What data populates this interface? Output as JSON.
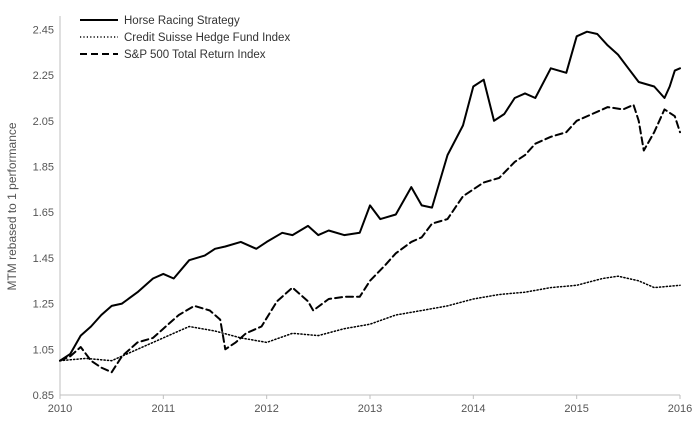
{
  "chart_data": {
    "type": "line",
    "title": "",
    "xlabel": "",
    "ylabel": "MTM rebased to 1 performance",
    "xlim": [
      2010,
      2016
    ],
    "ylim": [
      0.85,
      2.5
    ],
    "x_ticks": [
      "2010",
      "2011",
      "2012",
      "2013",
      "2014",
      "2015",
      "2016"
    ],
    "y_ticks": [
      "0.85",
      "1.05",
      "1.25",
      "1.45",
      "1.65",
      "1.85",
      "2.05",
      "2.25",
      "2.45"
    ],
    "grid": false,
    "legend": "top-left",
    "series": [
      {
        "name": "Horse Racing Strategy",
        "style": "solid",
        "color": "#000000",
        "x": [
          2010.0,
          2010.1,
          2010.2,
          2010.3,
          2010.4,
          2010.5,
          2010.6,
          2010.75,
          2010.9,
          2011.0,
          2011.1,
          2011.25,
          2011.4,
          2011.5,
          2011.6,
          2011.75,
          2011.9,
          2012.0,
          2012.15,
          2012.25,
          2012.4,
          2012.5,
          2012.6,
          2012.75,
          2012.9,
          2013.0,
          2013.1,
          2013.25,
          2013.4,
          2013.5,
          2013.6,
          2013.75,
          2013.9,
          2014.0,
          2014.1,
          2014.2,
          2014.3,
          2014.4,
          2014.5,
          2014.6,
          2014.75,
          2014.9,
          2015.0,
          2015.1,
          2015.2,
          2015.3,
          2015.4,
          2015.5,
          2015.6,
          2015.75,
          2015.85,
          2015.9,
          2015.95,
          2016.0
        ],
        "values": [
          1.0,
          1.03,
          1.11,
          1.15,
          1.2,
          1.24,
          1.25,
          1.3,
          1.36,
          1.38,
          1.36,
          1.44,
          1.46,
          1.49,
          1.5,
          1.52,
          1.49,
          1.52,
          1.56,
          1.55,
          1.59,
          1.55,
          1.57,
          1.55,
          1.56,
          1.68,
          1.62,
          1.64,
          1.76,
          1.68,
          1.67,
          1.9,
          2.03,
          2.2,
          2.23,
          2.05,
          2.08,
          2.15,
          2.17,
          2.15,
          2.28,
          2.26,
          2.42,
          2.44,
          2.43,
          2.38,
          2.34,
          2.28,
          2.22,
          2.2,
          2.15,
          2.2,
          2.27,
          2.28
        ]
      },
      {
        "name": "Credit Suisse Hedge Fund Index",
        "style": "dotted",
        "color": "#000000",
        "x": [
          2010.0,
          2010.25,
          2010.5,
          2010.75,
          2011.0,
          2011.25,
          2011.5,
          2011.75,
          2012.0,
          2012.25,
          2012.5,
          2012.75,
          2013.0,
          2013.25,
          2013.5,
          2013.75,
          2014.0,
          2014.25,
          2014.5,
          2014.75,
          2015.0,
          2015.25,
          2015.4,
          2015.5,
          2015.6,
          2015.75,
          2016.0
        ],
        "values": [
          1.0,
          1.01,
          1.0,
          1.05,
          1.1,
          1.15,
          1.13,
          1.1,
          1.08,
          1.12,
          1.11,
          1.14,
          1.16,
          1.2,
          1.22,
          1.24,
          1.27,
          1.29,
          1.3,
          1.32,
          1.33,
          1.36,
          1.37,
          1.36,
          1.35,
          1.32,
          1.33
        ]
      },
      {
        "name": "S&P 500 Total Return Index",
        "style": "dashed",
        "color": "#000000",
        "x": [
          2010.0,
          2010.1,
          2010.2,
          2010.3,
          2010.4,
          2010.5,
          2010.6,
          2010.75,
          2010.9,
          2011.0,
          2011.15,
          2011.3,
          2011.45,
          2011.55,
          2011.6,
          2011.7,
          2011.8,
          2011.95,
          2012.1,
          2012.25,
          2012.4,
          2012.45,
          2012.6,
          2012.75,
          2012.9,
          2013.0,
          2013.15,
          2013.25,
          2013.4,
          2013.5,
          2013.6,
          2013.75,
          2013.9,
          2014.0,
          2014.1,
          2014.25,
          2014.4,
          2014.5,
          2014.6,
          2014.75,
          2014.9,
          2015.0,
          2015.15,
          2015.3,
          2015.45,
          2015.55,
          2015.6,
          2015.65,
          2015.75,
          2015.85,
          2015.95,
          2016.0
        ],
        "values": [
          1.0,
          1.02,
          1.06,
          1.0,
          0.97,
          0.95,
          1.02,
          1.08,
          1.1,
          1.14,
          1.2,
          1.24,
          1.22,
          1.18,
          1.05,
          1.08,
          1.12,
          1.15,
          1.26,
          1.32,
          1.26,
          1.22,
          1.27,
          1.28,
          1.28,
          1.35,
          1.42,
          1.47,
          1.52,
          1.54,
          1.6,
          1.62,
          1.72,
          1.75,
          1.78,
          1.8,
          1.87,
          1.9,
          1.95,
          1.98,
          2.0,
          2.05,
          2.08,
          2.11,
          2.1,
          2.12,
          2.05,
          1.92,
          2.0,
          2.1,
          2.07,
          2.0
        ]
      }
    ]
  }
}
